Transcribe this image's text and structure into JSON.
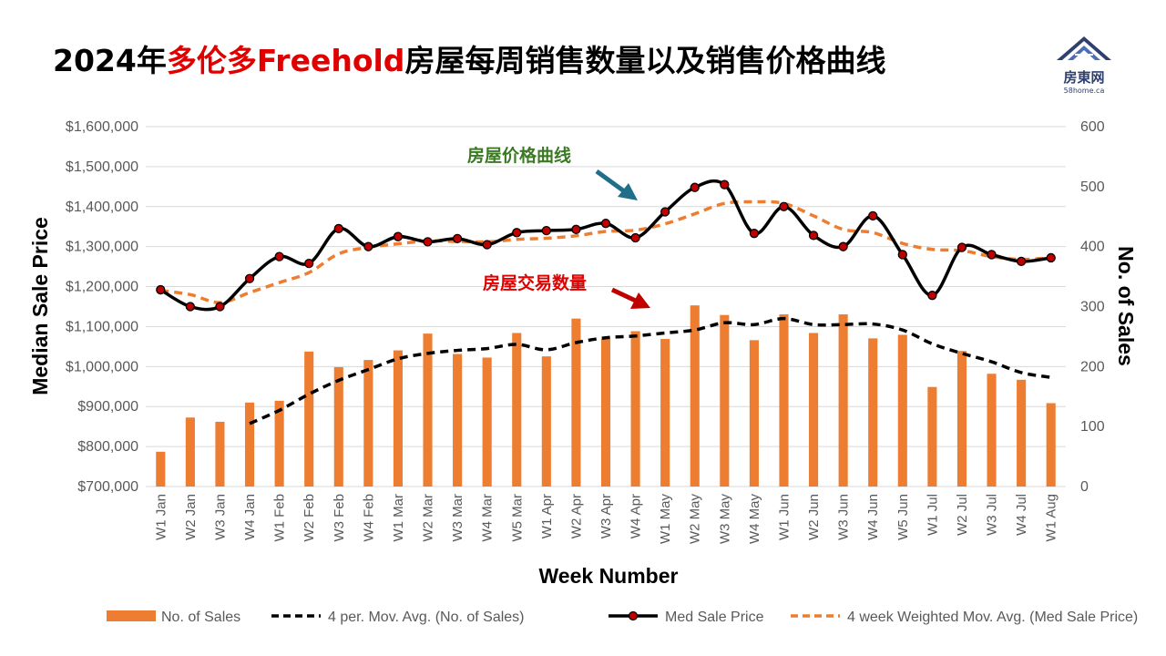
{
  "title": {
    "part1": "2024年",
    "part2": "多伦多Freehold",
    "part3": "房屋每周销售数量以及销售价格曲线"
  },
  "logo": {
    "name": "房東网",
    "sub": "58home.ca",
    "color": "#2f3f6e"
  },
  "colors": {
    "bar": "#ed7d31",
    "price": "#000000",
    "marker": "#c00000",
    "price_avg": "#ed7d31",
    "sales_avg": "#000000"
  },
  "chart_data": {
    "type": "bar",
    "title": "2024年多伦多Freehold房屋每周销售数量以及销售价格曲线",
    "xlabel": "Week Number",
    "ylabel": "Median Sale Price",
    "y2label": "No. of Sales",
    "ylim": [
      700000,
      1600000
    ],
    "y2lim": [
      0,
      600
    ],
    "yticks": [
      "$1,600,000",
      "$1,500,000",
      "$1,400,000",
      "$1,300,000",
      "$1,200,000",
      "$1,100,000",
      "$1,000,000",
      "$900,000",
      "$800,000",
      "$700,000"
    ],
    "y2ticks": [
      "600",
      "500",
      "400",
      "300",
      "200",
      "100",
      "0"
    ],
    "grid": true,
    "legend_position": "bottom",
    "categories": [
      "W1 Jan",
      "W2 Jan",
      "W3 Jan",
      "W4 Jan",
      "W1 Feb",
      "W2 Feb",
      "W3 Feb",
      "W4 Feb",
      "W1 Mar",
      "W2 Mar",
      "W3 Mar",
      "W4 Mar",
      "W5 Mar",
      "W1 Apr",
      "W2 Apr",
      "W3 Apr",
      "W4 Apr",
      "W1 May",
      "W2 May",
      "W3 May",
      "W4 May",
      "W1 Jun",
      "W2 Jun",
      "W3 Jun",
      "W4 Jun",
      "W5 Jun",
      "W1 Jul",
      "W2 Jul",
      "W3 Jul",
      "W4 Jul",
      "W1 Aug"
    ],
    "series": [
      {
        "name": "No. of Sales",
        "type": "bar",
        "axis": "right",
        "values": [
          58,
          115,
          108,
          140,
          143,
          225,
          199,
          211,
          227,
          255,
          221,
          215,
          256,
          217,
          280,
          246,
          259,
          246,
          302,
          286,
          244,
          287,
          256,
          287,
          247,
          253,
          166,
          226,
          188,
          178,
          139
        ]
      },
      {
        "name": "4 per. Mov. Avg. (No. of Sales)",
        "type": "line",
        "style": "dashed",
        "axis": "right",
        "values": [
          null,
          null,
          null,
          105,
          127,
          154,
          177,
          195,
          213,
          222,
          227,
          230,
          237,
          228,
          240,
          248,
          251,
          256,
          261,
          273,
          270,
          280,
          270,
          270,
          271,
          261,
          238,
          222,
          208,
          190,
          182
        ]
      },
      {
        "name": "Med Sale Price",
        "type": "line",
        "style": "solid-markers",
        "axis": "left",
        "values": [
          1192000,
          1150000,
          1150000,
          1220000,
          1275000,
          1258000,
          1345000,
          1300000,
          1325000,
          1312000,
          1320000,
          1305000,
          1335000,
          1340000,
          1343000,
          1358000,
          1322000,
          1387000,
          1448000,
          1455000,
          1333000,
          1400000,
          1328000,
          1300000,
          1377000,
          1280000,
          1178000,
          1298000,
          1280000,
          1263000,
          1272000
        ]
      },
      {
        "name": "4 week Weighted Mov. Avg. (Med Sale Price)",
        "type": "line",
        "style": "dashed",
        "axis": "left",
        "values": [
          1190000,
          1180000,
          1160000,
          1185000,
          1210000,
          1235000,
          1282000,
          1298000,
          1307000,
          1314000,
          1313000,
          1312000,
          1318000,
          1321000,
          1327000,
          1338000,
          1341000,
          1357000,
          1382000,
          1408000,
          1412000,
          1408000,
          1377000,
          1343000,
          1335000,
          1308000,
          1293000,
          1290000,
          1275000,
          1268000,
          1272000
        ]
      }
    ],
    "annotations": [
      {
        "text": "房屋价格曲线",
        "color": "#3a7a22"
      },
      {
        "text": "房屋交易数量",
        "color": "#e00000"
      }
    ]
  }
}
